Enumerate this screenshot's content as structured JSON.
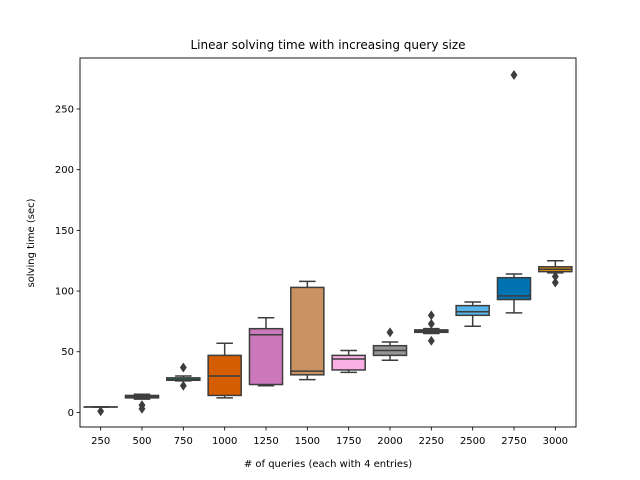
{
  "chart_data": {
    "type": "box",
    "title": "Linear solving time with increasing query size",
    "xlabel": "# of queries (each with 4 entries)",
    "ylabel": "solving time (sec)",
    "ylim": [
      -12,
      292
    ],
    "yticks": [
      0,
      50,
      100,
      150,
      200,
      250
    ],
    "grid": false,
    "categories": [
      "250",
      "500",
      "750",
      "1000",
      "1250",
      "1500",
      "1750",
      "2000",
      "2250",
      "2500",
      "2750",
      "3000"
    ],
    "boxes": [
      {
        "category": "250",
        "color": "#0173b2",
        "whisker_low": 4.5,
        "q1": 4.5,
        "median": 4.5,
        "q3": 4.5,
        "whisker_high": 4.5,
        "outliers": [
          1
        ]
      },
      {
        "category": "500",
        "color": "#de8f05",
        "whisker_low": 11,
        "q1": 12,
        "median": 13,
        "q3": 14,
        "whisker_high": 15,
        "outliers": [
          3,
          6
        ]
      },
      {
        "category": "750",
        "color": "#029e73",
        "whisker_low": 26,
        "q1": 26.5,
        "median": 27,
        "q3": 28.5,
        "whisker_high": 30,
        "outliers": [
          22,
          37
        ]
      },
      {
        "category": "1000",
        "color": "#d55e00",
        "whisker_low": 12,
        "q1": 14,
        "median": 30,
        "q3": 47,
        "whisker_high": 57,
        "outliers": []
      },
      {
        "category": "1250",
        "color": "#cc78bc",
        "whisker_low": 22,
        "q1": 23,
        "median": 64,
        "q3": 69,
        "whisker_high": 78,
        "outliers": []
      },
      {
        "category": "1500",
        "color": "#ca9161",
        "whisker_low": 27,
        "q1": 31,
        "median": 34,
        "q3": 103,
        "whisker_high": 108,
        "outliers": []
      },
      {
        "category": "1750",
        "color": "#fbafe4",
        "whisker_low": 33,
        "q1": 35,
        "median": 44,
        "q3": 47,
        "whisker_high": 51,
        "outliers": []
      },
      {
        "category": "2000",
        "color": "#949494",
        "whisker_low": 43,
        "q1": 47,
        "median": 51,
        "q3": 55,
        "whisker_high": 58,
        "outliers": [
          66
        ]
      },
      {
        "category": "2250",
        "color": "#ece133",
        "whisker_low": 65,
        "q1": 66,
        "median": 67,
        "q3": 68,
        "whisker_high": 69,
        "outliers": [
          59,
          73,
          80
        ]
      },
      {
        "category": "2500",
        "color": "#56b4e9",
        "whisker_low": 71,
        "q1": 80,
        "median": 83,
        "q3": 88,
        "whisker_high": 91,
        "outliers": []
      },
      {
        "category": "2750",
        "color": "#0173b2",
        "whisker_low": 82,
        "q1": 93,
        "median": 96,
        "q3": 111,
        "whisker_high": 114,
        "outliers": [
          278
        ]
      },
      {
        "category": "3000",
        "color": "#de8f05",
        "whisker_low": 115,
        "q1": 116,
        "median": 118,
        "q3": 120,
        "whisker_high": 125,
        "outliers": [
          107,
          112
        ]
      }
    ]
  }
}
